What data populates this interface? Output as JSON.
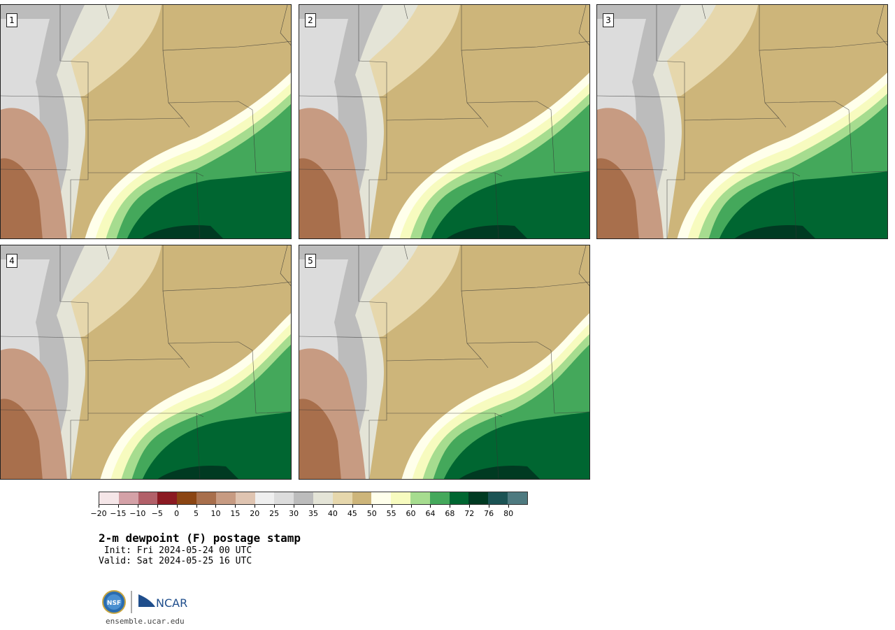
{
  "panels": [
    {
      "label": "1"
    },
    {
      "label": "2"
    },
    {
      "label": "3"
    },
    {
      "label": "4"
    },
    {
      "label": "5"
    }
  ],
  "colorbar": {
    "colors": [
      "#f5e6e8",
      "#d4a1a7",
      "#b26069",
      "#8b1a22",
      "#8b4513",
      "#a86f4c",
      "#c79b82",
      "#dfc4b1",
      "#efefef",
      "#dcdcdc",
      "#bcbcbc",
      "#e4e4d7",
      "#e6d7ac",
      "#cdb57a",
      "#ffffeb",
      "#f7fbbf",
      "#a6dc8f",
      "#44a85b",
      "#006631",
      "#003a22",
      "#1b5354",
      "#4e7a80"
    ],
    "tick_labels": [
      "−20",
      "−15",
      "−10",
      "−5",
      "0",
      "5",
      "10",
      "15",
      "20",
      "25",
      "30",
      "35",
      "40",
      "45",
      "50",
      "55",
      "60",
      "64",
      "68",
      "72",
      "76",
      "80"
    ]
  },
  "title": "2-m dewpoint (F) postage stamp",
  "init": " Init: Fri 2024-05-24 00 UTC",
  "valid": "Valid: Sat 2024-05-25 16 UTC",
  "logo": {
    "org1": "NSF",
    "org2": "NCAR"
  },
  "site": "ensemble.ucar.edu"
}
